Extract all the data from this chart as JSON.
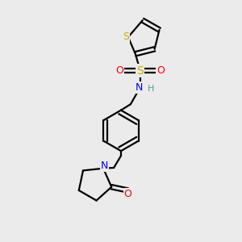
{
  "background_color": "#ebebeb",
  "bond_color": "#000000",
  "S_color": "#ccaa00",
  "O_color": "#ff0000",
  "N_color": "#0000ee",
  "H_color": "#559999",
  "line_width": 1.6,
  "figsize": [
    3.0,
    3.0
  ],
  "dpi": 100,
  "xlim": [
    0,
    10
  ],
  "ylim": [
    0,
    10
  ]
}
